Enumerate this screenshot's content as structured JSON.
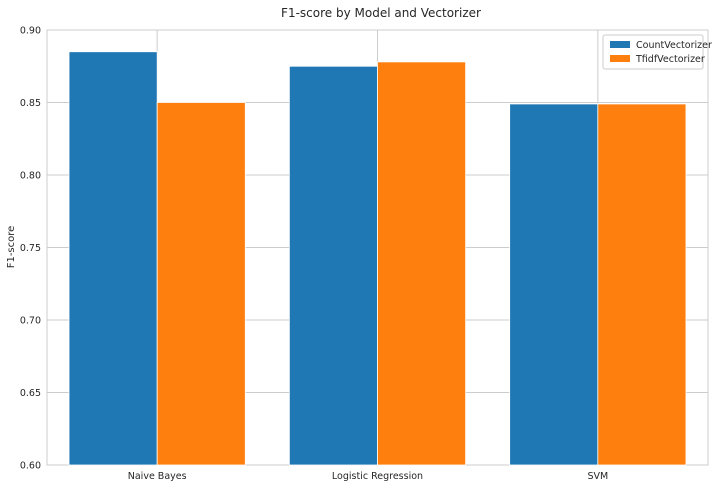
{
  "chart_data": {
    "type": "bar",
    "title": "F1-score by Model and Vectorizer",
    "xlabel": "",
    "ylabel": "F1-score",
    "categories": [
      "Naive Bayes",
      "Logistic Regression",
      "SVM"
    ],
    "series": [
      {
        "name": "CountVectorizer",
        "values": [
          0.885,
          0.875,
          0.849
        ],
        "color": "#1f77b4"
      },
      {
        "name": "TfidfVectorizer",
        "values": [
          0.85,
          0.878,
          0.849
        ],
        "color": "#ff7f0e"
      }
    ],
    "ylim": [
      0.6,
      0.9
    ],
    "yticks": [
      "0.60",
      "0.65",
      "0.70",
      "0.75",
      "0.80",
      "0.85",
      "0.90"
    ],
    "grid": true,
    "legend_position": "top-right"
  }
}
